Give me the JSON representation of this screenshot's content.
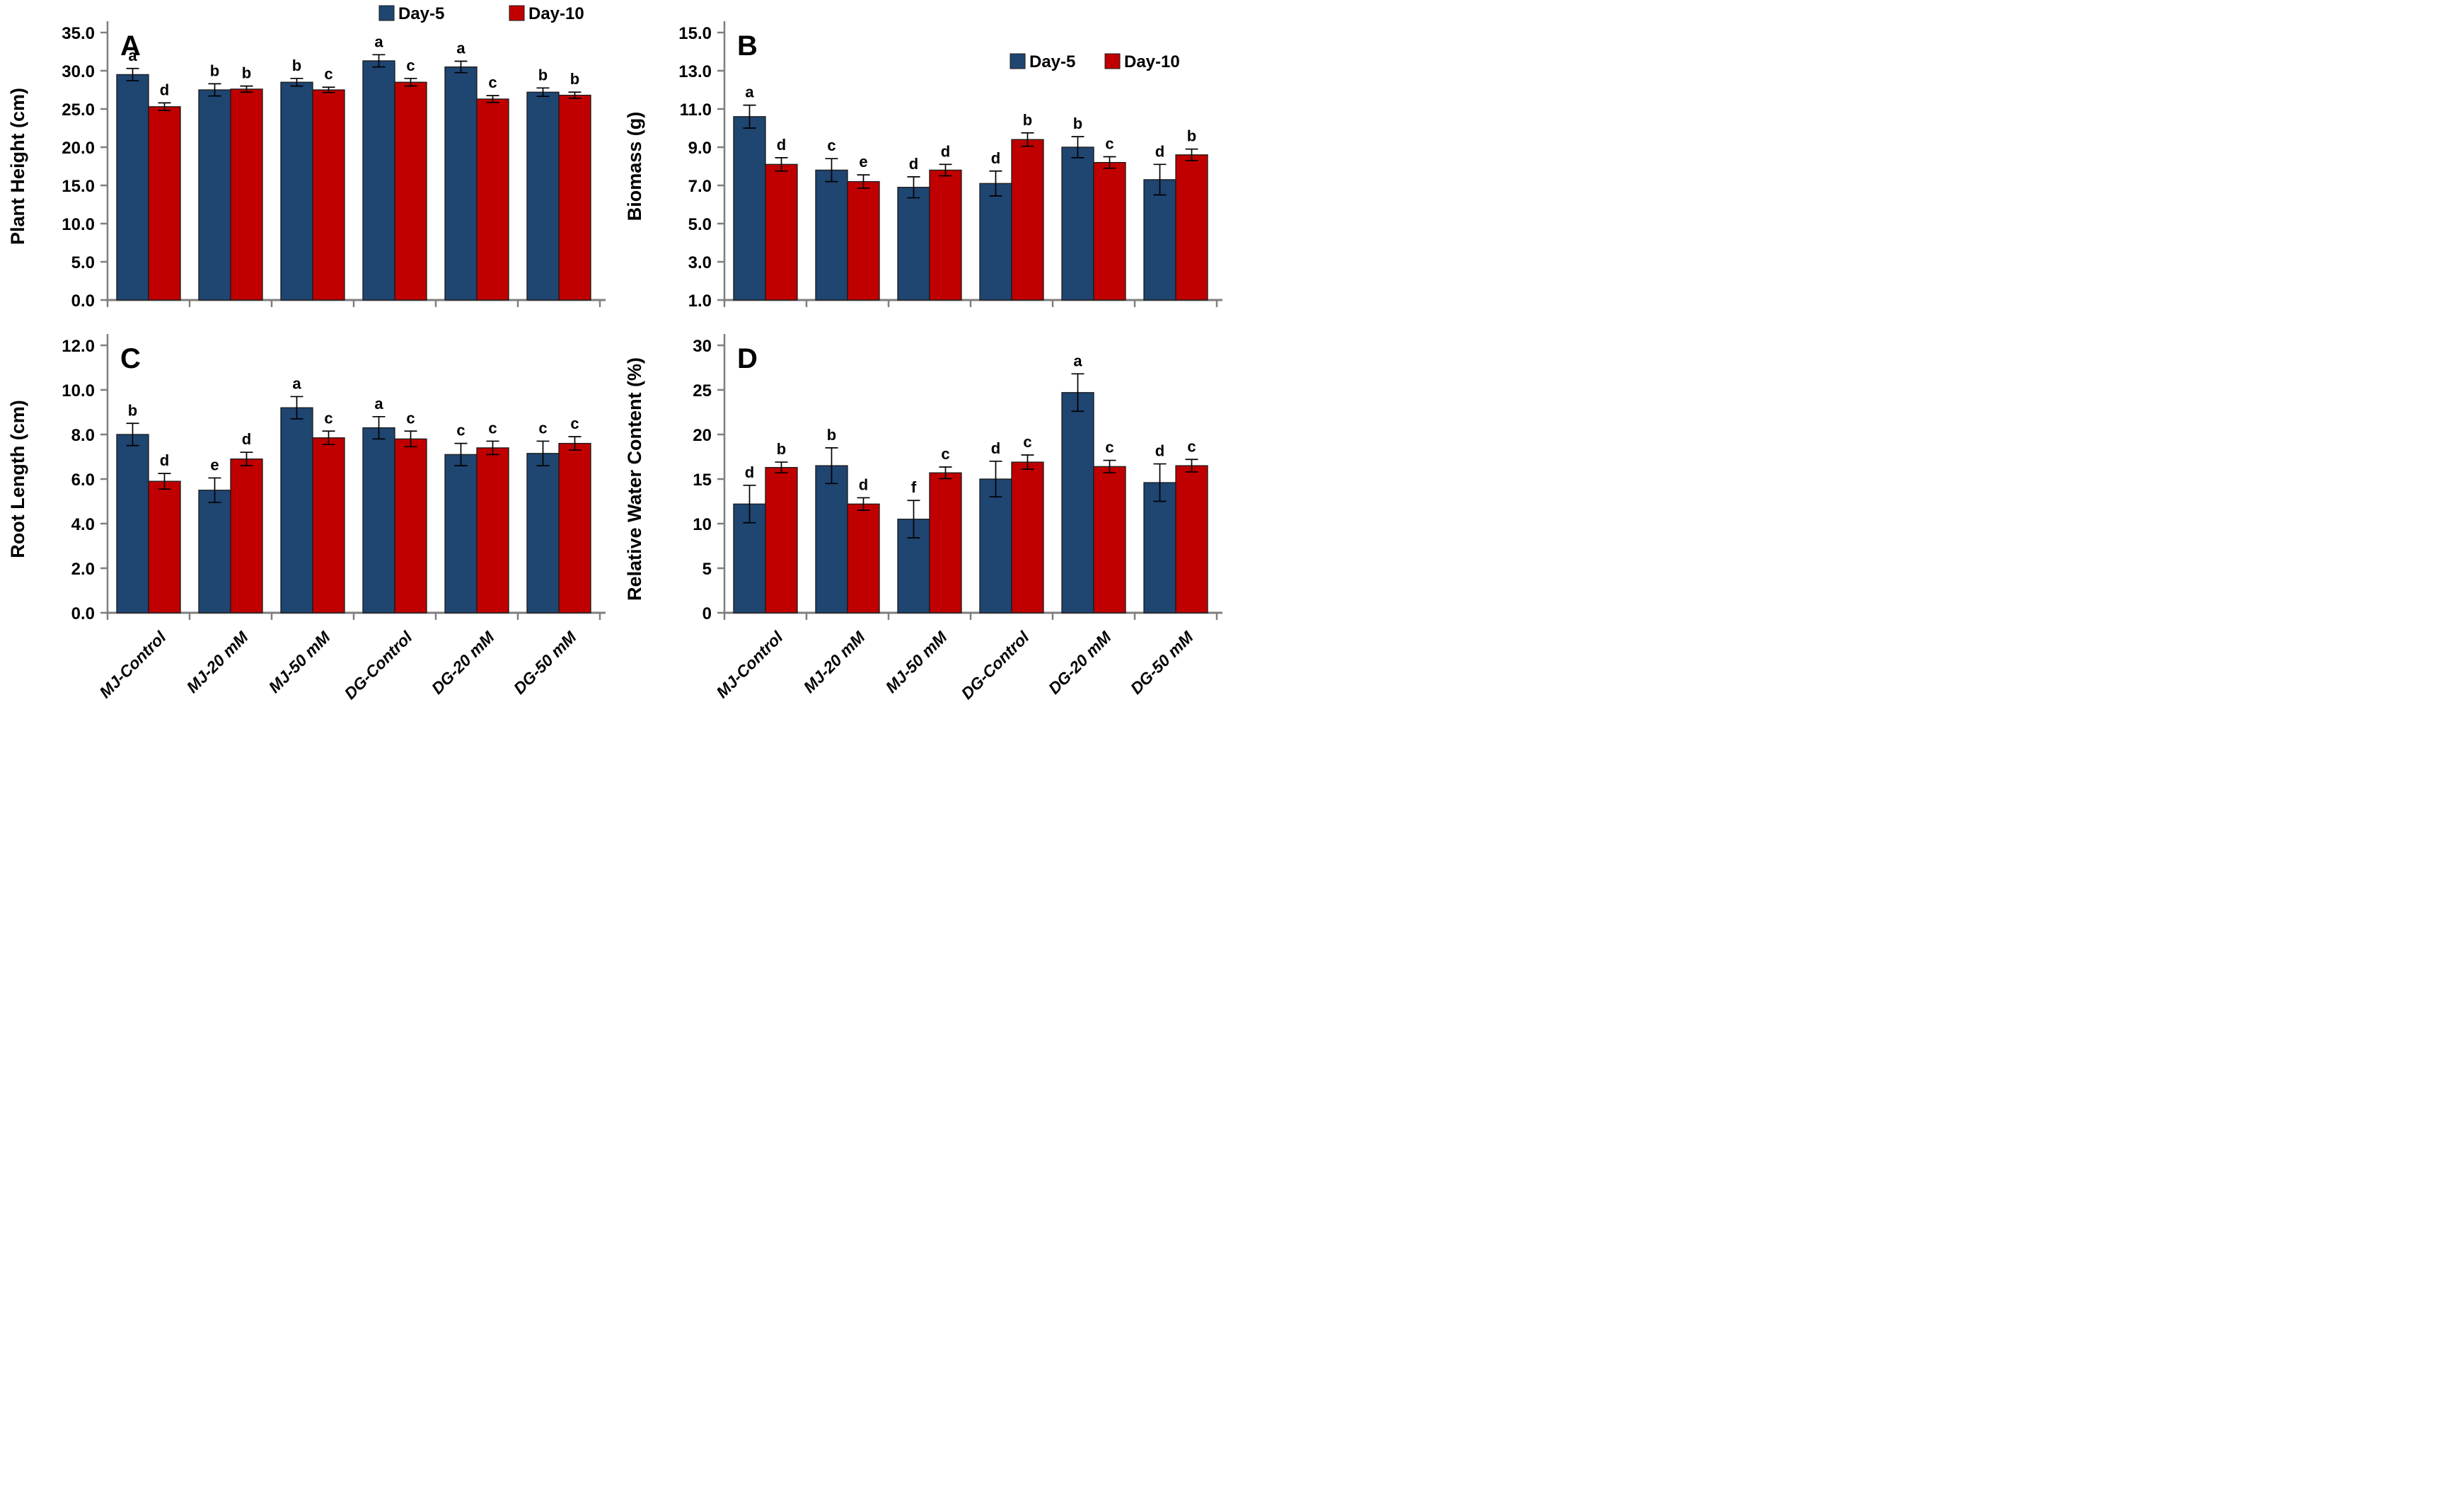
{
  "figure": {
    "legend": {
      "day5_label": "Day-5",
      "day10_label": "Day-10"
    },
    "colors": {
      "day5": "#1F4571",
      "day10": "#C00000",
      "axis": "#7f7f7f",
      "bar_outline": "#1a1a1a",
      "error_bar": "#000000",
      "text": "#000000"
    }
  },
  "chart_data": [
    {
      "panel_label": "A",
      "type": "bar",
      "y_title": "Plant Height (cm)",
      "ylim": [
        0,
        35
      ],
      "y_ticks": [
        "35.0",
        "30.0",
        "25.0",
        "20.0",
        "15.0",
        "10.0",
        "5.0",
        "0.0"
      ],
      "show_x_labels": false,
      "legend_pos": "outside-top",
      "categories": [
        "MJ-Control",
        "MJ-20 mM",
        "MJ-50 mM",
        "DG-Control",
        "DG-20 mM",
        "DG-50 mM"
      ],
      "series": [
        {
          "name": "Day-5",
          "color_key": "day5",
          "values": [
            29.5,
            27.5,
            28.5,
            31.3,
            30.5,
            27.2
          ],
          "errors": [
            0.8,
            0.8,
            0.5,
            0.8,
            0.75,
            0.55
          ],
          "letters": [
            "a",
            "b",
            "b",
            "a",
            "a",
            "b"
          ]
        },
        {
          "name": "Day-10",
          "color_key": "day10",
          "values": [
            25.3,
            27.6,
            27.5,
            28.5,
            26.3,
            26.8
          ],
          "errors": [
            0.5,
            0.4,
            0.35,
            0.5,
            0.45,
            0.4
          ],
          "letters": [
            "d",
            "b",
            "c",
            "c",
            "c",
            "b"
          ]
        }
      ]
    },
    {
      "panel_label": "B",
      "type": "bar",
      "y_title": "Biomass (g)",
      "ylim": [
        1,
        15
      ],
      "y_ticks": [
        "15.0",
        "13.0",
        "11.0",
        "9.0",
        "7.0",
        "5.0",
        "3.0",
        "1.0"
      ],
      "show_x_labels": false,
      "legend_pos": "inside-top-right",
      "categories": [
        "MJ-Control",
        "MJ-20 mM",
        "MJ-50 mM",
        "DG-Control",
        "DG-20 mM",
        "DG-50 mM"
      ],
      "series": [
        {
          "name": "Day-5",
          "color_key": "day5",
          "values": [
            10.6,
            7.8,
            6.9,
            7.1,
            9.0,
            7.3
          ],
          "errors": [
            0.6,
            0.6,
            0.55,
            0.65,
            0.55,
            0.8
          ],
          "letters": [
            "a",
            "c",
            "d",
            "d",
            "b",
            "d"
          ]
        },
        {
          "name": "Day-10",
          "color_key": "day10",
          "values": [
            8.1,
            7.2,
            7.8,
            9.4,
            8.2,
            8.6
          ],
          "errors": [
            0.35,
            0.35,
            0.3,
            0.35,
            0.3,
            0.3
          ],
          "letters": [
            "d",
            "e",
            "d",
            "b",
            "c",
            "b"
          ]
        }
      ]
    },
    {
      "panel_label": "C",
      "type": "bar",
      "y_title": "Root Length (cm)",
      "ylim": [
        0,
        12
      ],
      "y_ticks": [
        "12.0",
        "10.0",
        "8.0",
        "6.0",
        "4.0",
        "2.0",
        "0.0"
      ],
      "show_x_labels": true,
      "legend_pos": "none",
      "categories": [
        "MJ-Control",
        "MJ-20 mM",
        "MJ-50 mM",
        "DG-Control",
        "DG-20 mM",
        "DG-50 mM"
      ],
      "series": [
        {
          "name": "Day-5",
          "color_key": "day5",
          "values": [
            8.0,
            5.5,
            9.2,
            8.3,
            7.1,
            7.15
          ],
          "errors": [
            0.5,
            0.55,
            0.5,
            0.5,
            0.5,
            0.55
          ],
          "letters": [
            "b",
            "e",
            "a",
            "a",
            "c",
            "c"
          ]
        },
        {
          "name": "Day-10",
          "color_key": "day10",
          "values": [
            5.9,
            6.9,
            7.85,
            7.8,
            7.4,
            7.6
          ],
          "errors": [
            0.35,
            0.3,
            0.3,
            0.35,
            0.3,
            0.3
          ],
          "letters": [
            "d",
            "d",
            "c",
            "c",
            "c",
            "c"
          ]
        }
      ]
    },
    {
      "panel_label": "D",
      "type": "bar",
      "y_title": "Relative Water Content (%)",
      "ylim": [
        0,
        30
      ],
      "y_ticks": [
        "30",
        "25",
        "20",
        "15",
        "10",
        "5",
        "0"
      ],
      "show_x_labels": true,
      "legend_pos": "none",
      "categories": [
        "MJ-Control",
        "MJ-20 mM",
        "MJ-50 mM",
        "DG-Control",
        "DG-20 mM",
        "DG-50 mM"
      ],
      "series": [
        {
          "name": "Day-5",
          "color_key": "day5",
          "values": [
            12.2,
            16.5,
            10.5,
            15.0,
            24.7,
            14.6
          ],
          "errors": [
            2.1,
            2.0,
            2.1,
            2.0,
            2.1,
            2.1
          ],
          "letters": [
            "d",
            "b",
            "f",
            "d",
            "a",
            "d"
          ]
        },
        {
          "name": "Day-10",
          "color_key": "day10",
          "values": [
            16.3,
            12.2,
            15.7,
            16.9,
            16.4,
            16.5
          ],
          "errors": [
            0.6,
            0.7,
            0.65,
            0.8,
            0.7,
            0.7
          ],
          "letters": [
            "b",
            "d",
            "c",
            "c",
            "c",
            "c"
          ]
        }
      ]
    }
  ]
}
